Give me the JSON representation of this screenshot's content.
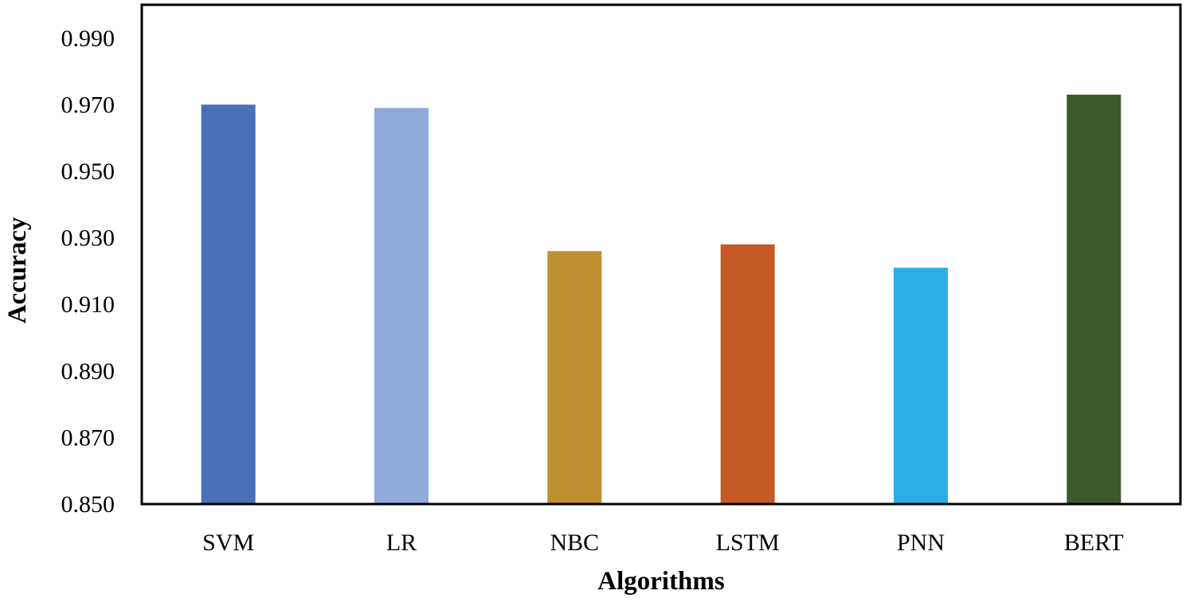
{
  "chart_data": {
    "type": "bar",
    "title": "",
    "xlabel": "Algorithms",
    "ylabel": "Accuracy",
    "categories": [
      "SVM",
      "LR",
      "NBC",
      "LSTM",
      "PNN",
      "BERT"
    ],
    "values": [
      0.97,
      0.969,
      0.926,
      0.928,
      0.921,
      0.973
    ],
    "colors": [
      "#4A70B8",
      "#8FAADB",
      "#BF9030",
      "#C55A26",
      "#2BAEE4",
      "#3B5A28"
    ],
    "ylim": [
      0.85,
      1.0
    ],
    "yticks": [
      "0.850",
      "0.870",
      "0.890",
      "0.910",
      "0.930",
      "0.950",
      "0.970",
      "0.990"
    ],
    "grid": false,
    "legend": "none"
  }
}
